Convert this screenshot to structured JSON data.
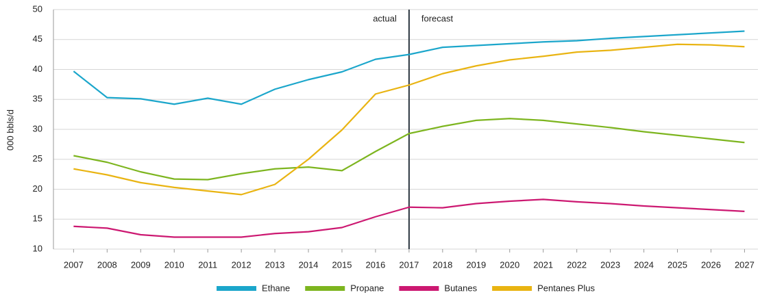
{
  "chart_data": {
    "type": "line",
    "y_label": "000 bbls/d",
    "x": [
      2007,
      2008,
      2009,
      2010,
      2011,
      2012,
      2013,
      2014,
      2015,
      2016,
      2017,
      2018,
      2019,
      2020,
      2021,
      2022,
      2023,
      2024,
      2025,
      2026,
      2027
    ],
    "xlim": [
      2006.4,
      2027.4
    ],
    "xticks": [
      2007,
      2008,
      2009,
      2010,
      2011,
      2012,
      2013,
      2014,
      2015,
      2016,
      2017,
      2018,
      2019,
      2020,
      2021,
      2022,
      2023,
      2024,
      2025,
      2026,
      2027
    ],
    "ylim": [
      10,
      50
    ],
    "yticks": [
      10,
      15,
      20,
      25,
      30,
      35,
      40,
      45,
      50
    ],
    "grid": true,
    "legend": "bottom",
    "divider": {
      "x": 2017,
      "left_label": "actual",
      "right_label": "forecast"
    },
    "series": [
      {
        "name": "Ethane",
        "color": "#1ba6cb",
        "values": [
          39.7,
          35.3,
          35.1,
          34.2,
          35.2,
          34.2,
          36.7,
          38.3,
          39.6,
          41.7,
          42.5,
          43.7,
          44.0,
          44.3,
          44.6,
          44.8,
          45.2,
          45.5,
          45.8,
          46.1,
          46.4
        ]
      },
      {
        "name": "Propane",
        "color": "#7db51f",
        "values": [
          25.6,
          24.5,
          22.9,
          21.7,
          21.6,
          22.6,
          23.4,
          23.7,
          23.1,
          26.3,
          29.3,
          30.5,
          31.5,
          31.8,
          31.5,
          30.9,
          30.3,
          29.6,
          29.0,
          28.4,
          27.8
        ]
      },
      {
        "name": "Butanes",
        "color": "#cc1871",
        "values": [
          13.8,
          13.5,
          12.4,
          12.0,
          12.0,
          12.0,
          12.6,
          12.9,
          13.6,
          15.4,
          17.0,
          16.9,
          17.6,
          18.0,
          18.3,
          17.9,
          17.6,
          17.2,
          16.9,
          16.6,
          16.3
        ]
      },
      {
        "name": "Pentanes Plus",
        "color": "#e9b412",
        "values": [
          23.4,
          22.4,
          21.1,
          20.3,
          19.7,
          19.1,
          20.8,
          25.0,
          29.9,
          35.9,
          37.4,
          39.3,
          40.6,
          41.6,
          42.2,
          42.9,
          43.2,
          43.7,
          44.2,
          44.1,
          43.8
        ]
      }
    ]
  }
}
